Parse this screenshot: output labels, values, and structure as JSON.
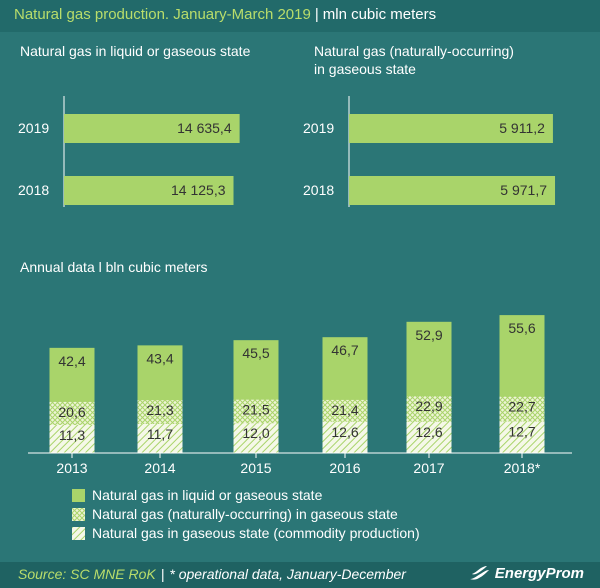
{
  "header": {
    "title_main": "Natural gas production. January-March 2019",
    "title_sep": "|",
    "title_unit": "mln cubic meters"
  },
  "colors": {
    "background": "#2b7676",
    "bar_green": "#a9d46a",
    "hatch_light": "#eef4d6",
    "text": "#ffffff",
    "title_accent": "#b9dd6b"
  },
  "chart_data": [
    {
      "type": "bar",
      "orientation": "horizontal",
      "title": "Natural gas in liquid or gaseous state",
      "categories": [
        "2019",
        "2018"
      ],
      "values": [
        14635.4,
        14125.3
      ],
      "labels": [
        "14 635,4",
        "14 125,3"
      ],
      "xlim": [
        0,
        15000
      ]
    },
    {
      "type": "bar",
      "orientation": "horizontal",
      "title": "Natural gas (naturally-occurring) in gaseous state",
      "title_lines": [
        "Natural gas (naturally-occurring)",
        "in gaseous state"
      ],
      "categories": [
        "2019",
        "2018"
      ],
      "values": [
        5911.2,
        5971.7
      ],
      "labels": [
        "5 911,2",
        "5 971,7"
      ],
      "xlim": [
        0,
        6000
      ]
    },
    {
      "type": "bar",
      "stacked": false,
      "title": "Annual data l bln cubic meters",
      "categories": [
        "2013",
        "2014",
        "2015",
        "2016",
        "2017",
        "2018*"
      ],
      "series": [
        {
          "name": "Natural gas in liquid or gaseous state",
          "values": [
            42.4,
            43.4,
            45.5,
            46.7,
            52.9,
            55.6
          ],
          "labels": [
            "42,4",
            "43,4",
            "45,5",
            "46,7",
            "52,9",
            "55,6"
          ]
        },
        {
          "name": "Natural gas (naturally-occurring) in gaseous state",
          "values": [
            20.6,
            21.3,
            21.5,
            21.4,
            22.9,
            22.7
          ],
          "labels": [
            "20,6",
            "21,3",
            "21,5",
            "21,4",
            "22,9",
            "22,7"
          ]
        },
        {
          "name": "Natural gas in gaseous state (commodity production)",
          "values": [
            11.3,
            11.7,
            12.0,
            12.6,
            12.6,
            12.7
          ],
          "labels": [
            "11,3",
            "11,7",
            "12,0",
            "12,6",
            "12,6",
            "12,7"
          ]
        }
      ],
      "ylim": [
        0,
        60
      ]
    }
  ],
  "legend": [
    {
      "label": "Natural gas in liquid or gaseous state",
      "style": "solid"
    },
    {
      "label": "Natural gas (naturally-occurring) in gaseous state",
      "style": "crosshatch"
    },
    {
      "label": "Natural gas in gaseous state (commodity production)",
      "style": "diagonal"
    }
  ],
  "footer": {
    "source": "Source: SC MNE RoK",
    "sep": "|",
    "note": "* operational data, January-December",
    "brand": "EnergyProm"
  }
}
